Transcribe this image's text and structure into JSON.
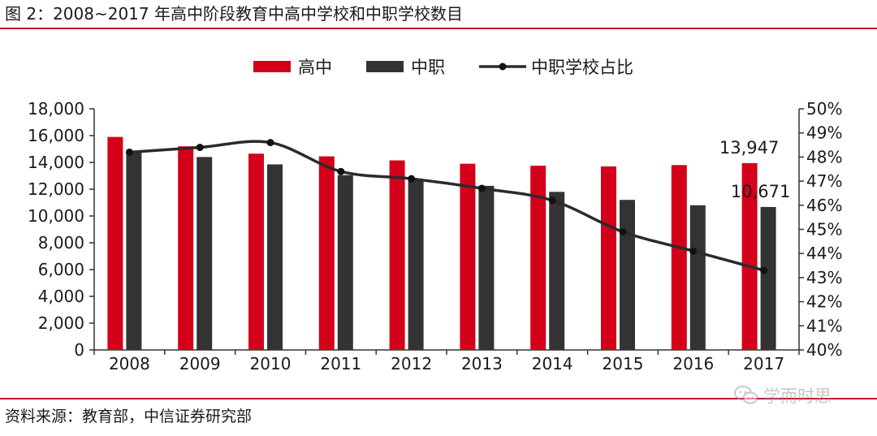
{
  "header": {
    "title": "图 2：2008~2017 年高中阶段教育中高中学校和中职学校数目"
  },
  "footer": {
    "source": "资料来源：教育部，中信证券研究部",
    "watermark": "学而时思",
    "watermark_icon": "wechat-icon"
  },
  "colors": {
    "rule": "#c8102e",
    "high_school_bar": "#d4001a",
    "vocational_bar": "#333333",
    "ratio_line": "#2b2b2b",
    "axis": "#333333"
  },
  "chart_data": {
    "type": "bar",
    "categories": [
      "2008",
      "2009",
      "2010",
      "2011",
      "2012",
      "2013",
      "2014",
      "2015",
      "2016",
      "2017"
    ],
    "series": [
      {
        "name": "高中",
        "type": "bar",
        "axis": "left",
        "values": [
          15900,
          15200,
          14650,
          14450,
          14150,
          13900,
          13750,
          13700,
          13800,
          13947
        ]
      },
      {
        "name": "中职",
        "type": "bar",
        "axis": "left",
        "values": [
          14850,
          14400,
          13850,
          13050,
          12650,
          12250,
          11800,
          11200,
          10800,
          10671
        ]
      },
      {
        "name": "中职学校占比",
        "type": "line",
        "axis": "right",
        "values": [
          48.2,
          48.4,
          48.6,
          47.4,
          47.1,
          46.7,
          46.2,
          44.9,
          44.1,
          43.3
        ]
      }
    ],
    "annotations": [
      {
        "category": "2017",
        "series": "高中",
        "text": "13,947"
      },
      {
        "category": "2017",
        "series": "中职",
        "text": "10,671"
      }
    ],
    "y_left": {
      "min": 0,
      "max": 18000,
      "ticks": [
        "0",
        "2,000",
        "4,000",
        "6,000",
        "8,000",
        "10,000",
        "12,000",
        "14,000",
        "16,000",
        "18,000"
      ]
    },
    "y_right": {
      "min": 40,
      "max": 50,
      "ticks": [
        "40%",
        "41%",
        "42%",
        "43%",
        "44%",
        "45%",
        "46%",
        "47%",
        "48%",
        "49%",
        "50%"
      ]
    },
    "legend_position": "top",
    "grid": false
  }
}
